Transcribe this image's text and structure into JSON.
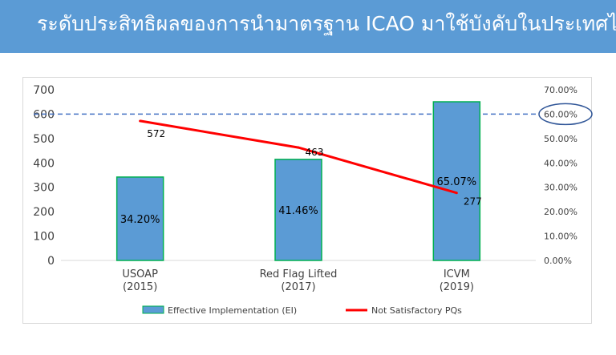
{
  "header": {
    "title": "ระดับประสิทธิผลของการนำมาตรฐาน ICAO มาใช้บังคับในประเทศไทย",
    "background": "#5b9bd5"
  },
  "chart_data": {
    "type": "bar",
    "categories": [
      [
        "USOAP",
        "(2015)"
      ],
      [
        "Red Flag Lifted",
        "(2017)"
      ],
      [
        "ICVM",
        "(2019)"
      ]
    ],
    "series": [
      {
        "name": "Effective Implementation (EI)",
        "type": "bar",
        "axis": "right",
        "values": [
          34.2,
          41.46,
          65.07
        ],
        "labels": [
          "34.20%",
          "41.46%",
          "65.07%"
        ],
        "color": "#5b9bd5",
        "border": "#00b050"
      },
      {
        "name": "Not Satisfactory PQs",
        "type": "line",
        "axis": "left",
        "values": [
          572,
          463,
          277
        ],
        "labels": [
          "572",
          "463",
          "277"
        ],
        "color": "#ff0000"
      }
    ],
    "y_left": {
      "lim": [
        0,
        700
      ],
      "ticks": [
        "0",
        "100",
        "200",
        "300",
        "400",
        "500",
        "600",
        "700"
      ]
    },
    "y_right": {
      "lim": [
        0,
        70
      ],
      "ticks": [
        "0.00%",
        "10.00%",
        "20.00%",
        "30.00%",
        "40.00%",
        "50.00%",
        "60.00%",
        "70.00%"
      ]
    },
    "reference_line": {
      "value": 60,
      "axis": "right",
      "style": "dashed",
      "color": "#4472c4"
    },
    "highlight_tick": {
      "label": "60.00%",
      "color": "#2f5597"
    },
    "legend": {
      "position": "bottom"
    },
    "grid": false
  }
}
